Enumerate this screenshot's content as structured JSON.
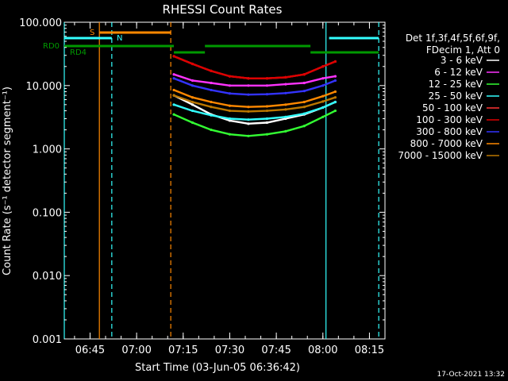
{
  "chart_data": {
    "type": "line",
    "title": "RHESSI Count Rates",
    "xlabel": "Start Time (03-Jun-05 06:36:42)",
    "ylabel": "Count Rate (s⁻¹ detector segment⁻¹)",
    "y_scale": "log",
    "ylim": [
      0.001,
      100
    ],
    "xlim": [
      "06:36:42",
      "08:20"
    ],
    "x_ticks": [
      "06:45",
      "07:00",
      "07:15",
      "07:30",
      "07:45",
      "08:00",
      "08:15"
    ],
    "y_ticks": [
      "0.001",
      "0.010",
      "0.100",
      "1.000",
      "10.000",
      "100.000"
    ],
    "legend_header": [
      "Det 1f,3f,4f,5f,6f,9f,",
      "FDecim 1, Att 0"
    ],
    "legend_position": "right",
    "series": [
      {
        "name": "3 - 6 keV",
        "color": "#ffffff",
        "x": [
          "07:12",
          "07:18",
          "07:24",
          "07:30",
          "07:36",
          "07:42",
          "07:48",
          "07:54",
          "08:00",
          "08:04"
        ],
        "values": [
          7,
          5,
          3.5,
          2.8,
          2.5,
          2.6,
          3,
          3.5,
          4.5,
          5.5
        ]
      },
      {
        "name": "6 - 12 keV",
        "color": "#ff33ff",
        "x": [
          "07:12",
          "07:18",
          "07:24",
          "07:30",
          "07:36",
          "07:42",
          "07:48",
          "07:54",
          "08:00",
          "08:04"
        ],
        "values": [
          15,
          12,
          11,
          10,
          10,
          10,
          10.5,
          11,
          13,
          14
        ]
      },
      {
        "name": "12 - 25 keV",
        "color": "#33ff33",
        "x": [
          "07:12",
          "07:18",
          "07:24",
          "07:30",
          "07:36",
          "07:42",
          "07:48",
          "07:54",
          "08:00",
          "08:04"
        ],
        "values": [
          3.5,
          2.6,
          2,
          1.7,
          1.6,
          1.7,
          1.9,
          2.3,
          3.2,
          4
        ]
      },
      {
        "name": "25 - 50 keV",
        "color": "#33ffff",
        "x": [
          "07:12",
          "07:18",
          "07:24",
          "07:30",
          "07:36",
          "07:42",
          "07:48",
          "07:54",
          "08:00",
          "08:04"
        ],
        "values": [
          5,
          4,
          3.4,
          3,
          2.9,
          3,
          3.2,
          3.6,
          4.5,
          5.5
        ]
      },
      {
        "name": "50 - 100 keV",
        "color": "#ff3333",
        "x": [
          "07:12",
          "07:18",
          "07:24",
          "07:30",
          "07:36",
          "07:42",
          "07:48",
          "07:54",
          "08:00",
          "08:04"
        ],
        "values": [
          29,
          22,
          17,
          14,
          13,
          13,
          13.5,
          15,
          20,
          24
        ]
      },
      {
        "name": "100 - 300 keV",
        "color": "#dd0000",
        "x": [
          "07:12",
          "07:18",
          "07:24",
          "07:30",
          "07:36",
          "07:42",
          "07:48",
          "07:54",
          "08:00",
          "08:04"
        ],
        "values": [
          29,
          22,
          17,
          14,
          13,
          13,
          13.5,
          15,
          20,
          24
        ]
      },
      {
        "name": "300 - 800 keV",
        "color": "#3333ff",
        "x": [
          "07:12",
          "07:18",
          "07:24",
          "07:30",
          "07:36",
          "07:42",
          "07:48",
          "07:54",
          "08:00",
          "08:04"
        ],
        "values": [
          13,
          10,
          8.5,
          7.5,
          7.2,
          7.3,
          7.6,
          8.2,
          10,
          12
        ]
      },
      {
        "name": "800 - 7000 keV",
        "color": "#ff8800",
        "x": [
          "07:12",
          "07:18",
          "07:24",
          "07:30",
          "07:36",
          "07:42",
          "07:48",
          "07:54",
          "08:00",
          "08:04"
        ],
        "values": [
          8.5,
          6.5,
          5.5,
          4.8,
          4.6,
          4.7,
          5,
          5.5,
          6.8,
          8
        ]
      },
      {
        "name": "7000 - 15000 keV",
        "color": "#bb7700",
        "x": [
          "07:12",
          "07:18",
          "07:24",
          "07:30",
          "07:36",
          "07:42",
          "07:48",
          "07:54",
          "08:00",
          "08:04"
        ],
        "values": [
          7,
          5.5,
          4.6,
          4,
          3.9,
          4,
          4.2,
          4.6,
          5.6,
          6.5
        ]
      }
    ],
    "state_bars": [
      {
        "label": "S",
        "color": "#ff8800",
        "segments": [
          [
            "06:48",
            "07:11"
          ]
        ]
      },
      {
        "label": "N",
        "color": "#33ffff",
        "segments": [
          [
            "06:36:42",
            "06:52"
          ],
          [
            "08:02",
            "08:18"
          ]
        ]
      },
      {
        "label": "RD0",
        "color": "#009900",
        "segments": [
          [
            "06:36:42",
            "07:12"
          ],
          [
            "07:22",
            "07:56"
          ]
        ]
      },
      {
        "label": "RD4",
        "color": "#009900",
        "segments": [
          [
            "07:12",
            "07:22"
          ],
          [
            "07:56",
            "08:18"
          ]
        ]
      }
    ],
    "vertical_markers": [
      {
        "time": "06:36:42",
        "color": "#33ffff",
        "style": "solid"
      },
      {
        "time": "06:48",
        "color": "#ff8800",
        "style": "solid"
      },
      {
        "time": "06:52",
        "color": "#33ffff",
        "style": "dashed"
      },
      {
        "time": "07:11",
        "color": "#ff8800",
        "style": "dashed"
      },
      {
        "time": "08:01",
        "color": "#33ffff",
        "style": "solid"
      },
      {
        "time": "08:18",
        "color": "#33ffff",
        "style": "dashed"
      }
    ],
    "grid": false
  },
  "footer": {
    "date_stamp": "17-Oct-2021 13:32"
  }
}
